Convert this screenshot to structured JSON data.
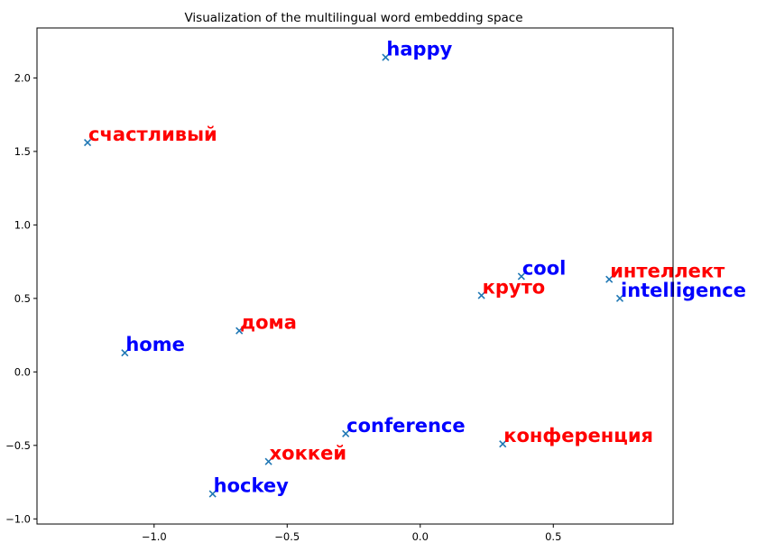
{
  "chart_data": {
    "type": "scatter",
    "title": "Visualization of the multilingual word embedding space",
    "xlabel": "",
    "ylabel": "",
    "xlim": [
      -1.44,
      0.95
    ],
    "ylim": [
      -1.035,
      2.34
    ],
    "x_ticks": [
      {
        "value": -1.0,
        "label": "−1.0"
      },
      {
        "value": -0.5,
        "label": "−0.5"
      },
      {
        "value": 0.0,
        "label": "0.0"
      },
      {
        "value": 0.5,
        "label": "0.5"
      }
    ],
    "y_ticks": [
      {
        "value": -1.0,
        "label": "−1.0"
      },
      {
        "value": -0.5,
        "label": "−0.5"
      },
      {
        "value": 0.0,
        "label": "0.0"
      },
      {
        "value": 0.5,
        "label": "0.5"
      },
      {
        "value": 1.0,
        "label": "1.0"
      },
      {
        "value": 1.5,
        "label": "1.5"
      },
      {
        "value": 2.0,
        "label": "2.0"
      }
    ],
    "grid": false,
    "marker": "x",
    "marker_color": "#1f77b4",
    "series_colors": {
      "en": "#0000ff",
      "ru": "#ff0000"
    },
    "points": [
      {
        "label": "happy",
        "x": -0.13,
        "y": 2.14,
        "lang": "en"
      },
      {
        "label": "счастливый",
        "x": -1.25,
        "y": 1.56,
        "lang": "ru"
      },
      {
        "label": "cool",
        "x": 0.38,
        "y": 0.65,
        "lang": "en"
      },
      {
        "label": "круто",
        "x": 0.23,
        "y": 0.52,
        "lang": "ru"
      },
      {
        "label": "интеллект",
        "x": 0.71,
        "y": 0.63,
        "lang": "ru"
      },
      {
        "label": "intelligence",
        "x": 0.75,
        "y": 0.5,
        "lang": "en"
      },
      {
        "label": "дома",
        "x": -0.68,
        "y": 0.28,
        "lang": "ru"
      },
      {
        "label": "home",
        "x": -1.11,
        "y": 0.13,
        "lang": "en"
      },
      {
        "label": "conference",
        "x": -0.28,
        "y": -0.42,
        "lang": "en"
      },
      {
        "label": "конференция",
        "x": 0.31,
        "y": -0.49,
        "lang": "ru"
      },
      {
        "label": "хоккей",
        "x": -0.57,
        "y": -0.61,
        "lang": "ru"
      },
      {
        "label": "hockey",
        "x": -0.78,
        "y": -0.83,
        "lang": "en"
      }
    ]
  }
}
